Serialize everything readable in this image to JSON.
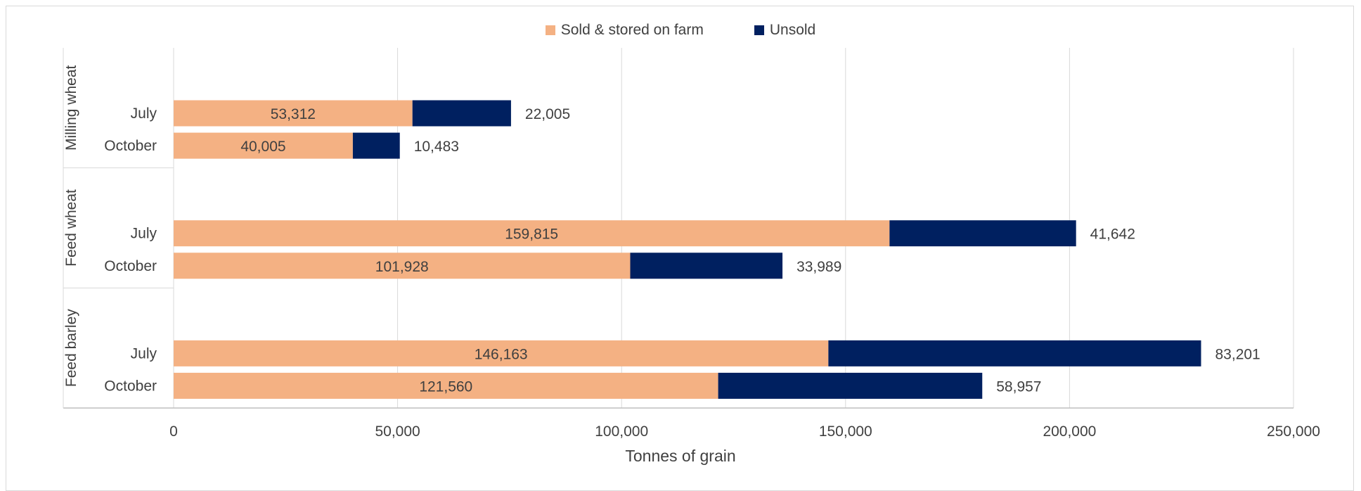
{
  "chart_data": {
    "type": "bar",
    "orientation": "horizontal",
    "stacked": true,
    "xlabel": "Tonnes of grain",
    "xlim": [
      0,
      250000
    ],
    "xticks": [
      0,
      50000,
      100000,
      150000,
      200000,
      250000
    ],
    "xtick_labels": [
      "0",
      "50,000",
      "100,000",
      "150,000",
      "200,000",
      "250,000"
    ],
    "grid": true,
    "legend_position": "top",
    "colors": {
      "sold": "#F4B183",
      "unsold": "#002060"
    },
    "legend": [
      {
        "key": "sold",
        "label": "Sold & stored on farm"
      },
      {
        "key": "unsold",
        "label": "Unsold"
      }
    ],
    "groups": [
      {
        "name": "Milling wheat",
        "rows": [
          {
            "label": "July",
            "sold": 53312,
            "unsold": 22005,
            "sold_label": "53,312",
            "unsold_label": "22,005"
          },
          {
            "label": "October",
            "sold": 40005,
            "unsold": 10483,
            "sold_label": "40,005",
            "unsold_label": "10,483"
          }
        ]
      },
      {
        "name": "Feed wheat",
        "rows": [
          {
            "label": "July",
            "sold": 159815,
            "unsold": 41642,
            "sold_label": "159,815",
            "unsold_label": "41,642"
          },
          {
            "label": "October",
            "sold": 101928,
            "unsold": 33989,
            "sold_label": "101,928",
            "unsold_label": "33,989"
          }
        ]
      },
      {
        "name": "Feed barley",
        "rows": [
          {
            "label": "July",
            "sold": 146163,
            "unsold": 83201,
            "sold_label": "146,163",
            "unsold_label": "83,201"
          },
          {
            "label": "October",
            "sold": 121560,
            "unsold": 58957,
            "sold_label": "121,560",
            "unsold_label": "58,957"
          }
        ]
      }
    ]
  }
}
